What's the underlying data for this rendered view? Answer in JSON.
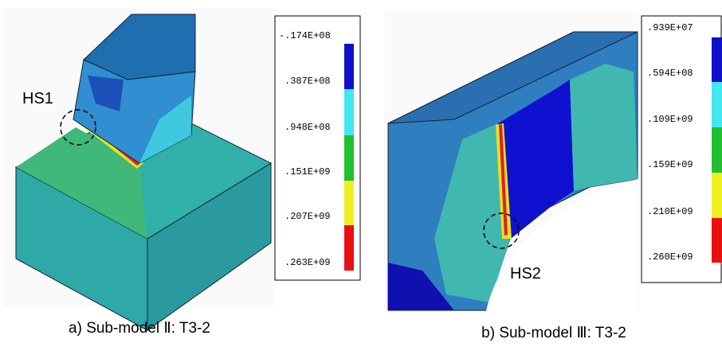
{
  "panels": [
    {
      "hotspot": "HS1",
      "caption": "a) Sub-model Ⅱ: T3-2",
      "legend": [
        "-.174E+08",
        ".387E+08",
        ".948E+08",
        ".151E+09",
        ".207E+09",
        ".263E+09"
      ]
    },
    {
      "hotspot": "HS2",
      "caption": "b) Sub-model Ⅲ: T3-2",
      "legend": [
        ".939E+07",
        ".594E+08",
        ".109E+09",
        ".159E+09",
        ".210E+09",
        ".260E+09"
      ]
    }
  ]
}
